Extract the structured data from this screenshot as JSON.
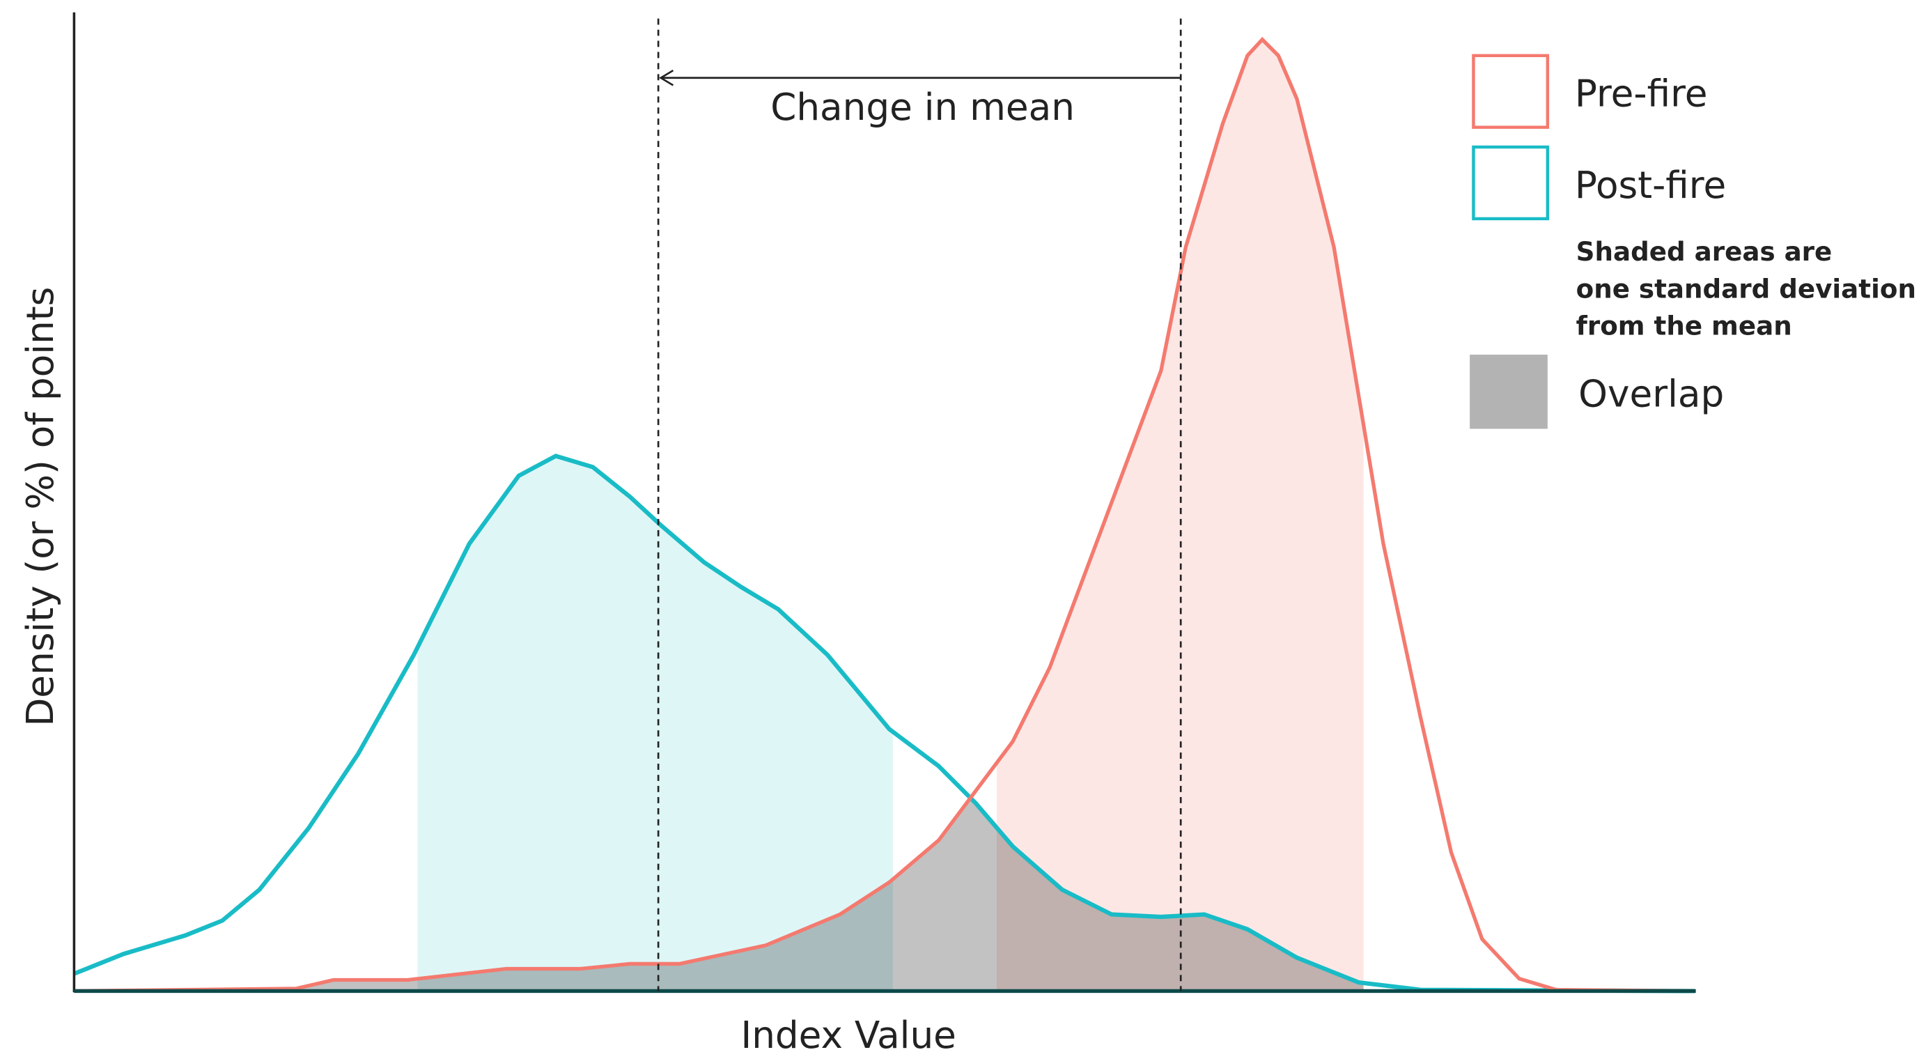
{
  "annotation": "Change in mean",
  "x_axis_label": "Index Value",
  "y_axis_label": "Density (or %) of points",
  "legend": [
    {
      "label": "Pre-fire",
      "color": "#f47a6f"
    },
    {
      "label": "Post-fire",
      "color": "#19bcc6"
    },
    {
      "label": "Overlap",
      "color": "#b3b3b3"
    }
  ],
  "note_lines": [
    "Shaded areas are",
    "one standard deviation",
    "from the mean"
  ]
}
